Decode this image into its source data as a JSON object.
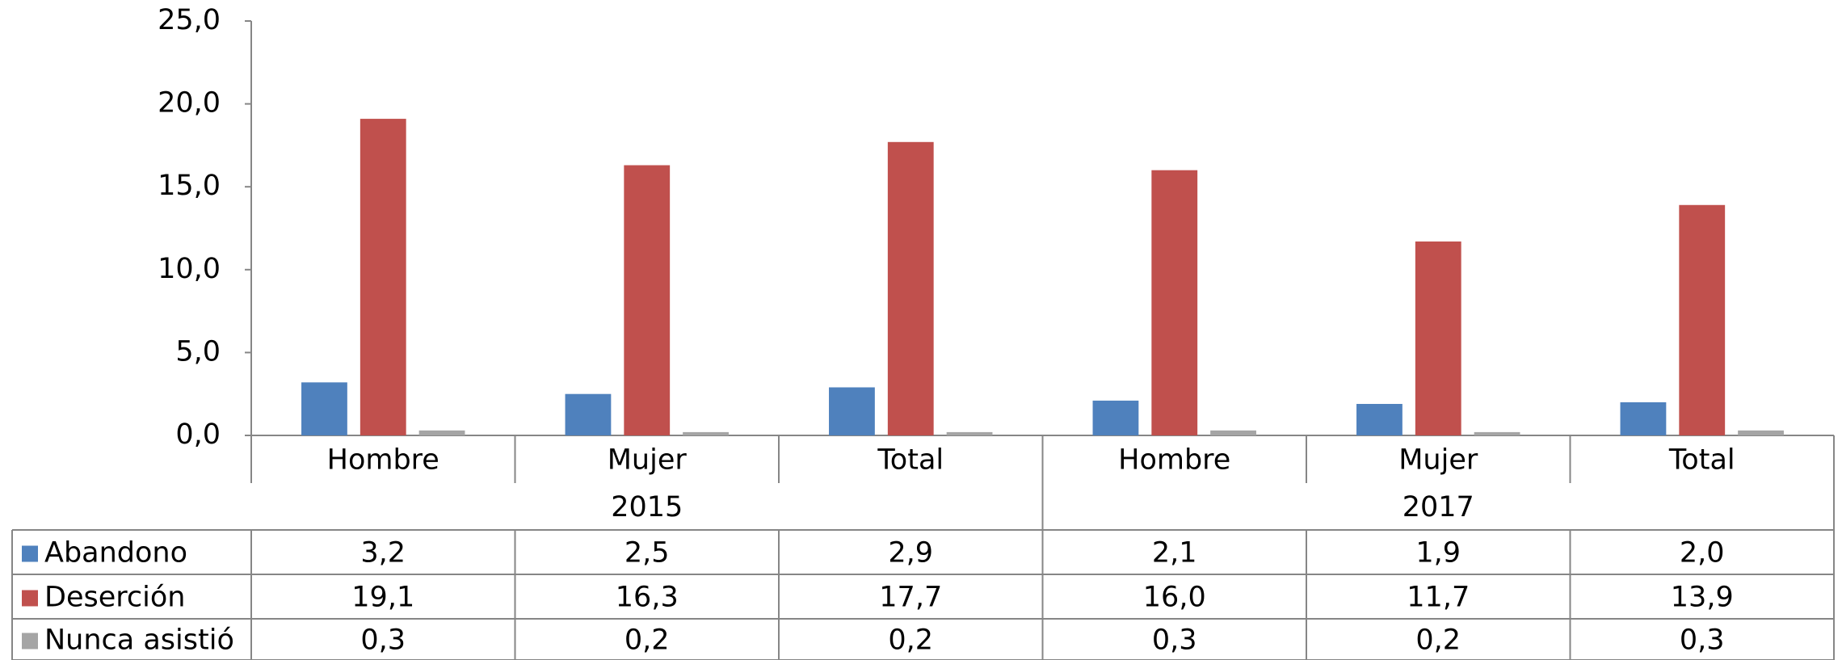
{
  "chart_data": {
    "type": "bar",
    "categories": [
      "Hombre",
      "Mujer",
      "Total",
      "Hombre",
      "Mujer",
      "Total"
    ],
    "groups": [
      "2015",
      "2017"
    ],
    "series": [
      {
        "name": "Abandono",
        "color": "#4f81bd",
        "values": [
          3.2,
          2.5,
          2.9,
          2.1,
          1.9,
          2.0
        ],
        "value_labels": [
          "3,2",
          "2,5",
          "2,9",
          "2,1",
          "1,9",
          "2,0"
        ]
      },
      {
        "name": "Deserción",
        "color": "#c0504d",
        "values": [
          19.1,
          16.3,
          17.7,
          16.0,
          11.7,
          13.9
        ],
        "value_labels": [
          "19,1",
          "16,3",
          "17,7",
          "16,0",
          "11,7",
          "13,9"
        ]
      },
      {
        "name": "Nunca asistió",
        "color": "#a5a5a5",
        "values": [
          0.3,
          0.2,
          0.2,
          0.3,
          0.2,
          0.3
        ],
        "value_labels": [
          "0,3",
          "0,2",
          "0,2",
          "0,3",
          "0,2",
          "0,3"
        ]
      }
    ],
    "ylim": [
      0,
      25
    ],
    "yticks": [
      {
        "value": 0,
        "label": "0,0"
      },
      {
        "value": 5,
        "label": "5,0"
      },
      {
        "value": 10,
        "label": "10,0"
      },
      {
        "value": 15,
        "label": "15,0"
      },
      {
        "value": 20,
        "label": "20,0"
      },
      {
        "value": 25,
        "label": "25,0"
      }
    ],
    "data_table": true
  }
}
